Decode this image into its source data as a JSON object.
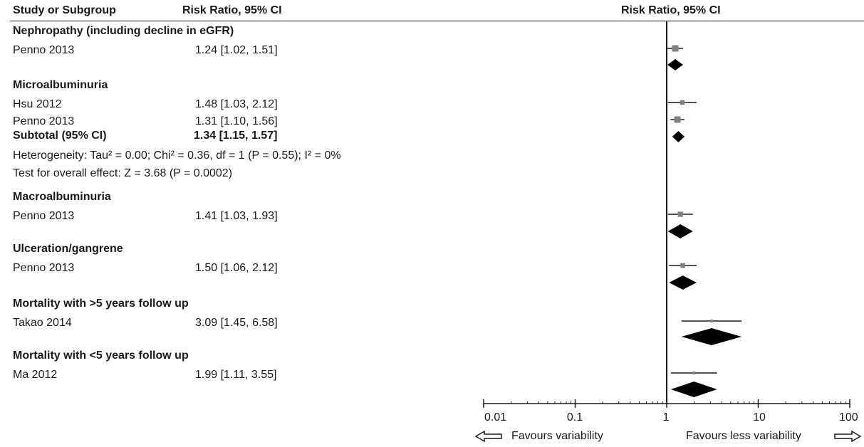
{
  "header": {
    "col_study": "Study or Subgroup",
    "col_rr": "Risk Ratio, 95% CI",
    "col_plot": "Risk Ratio, 95% CI"
  },
  "rows": [
    {
      "kind": "group",
      "label": "Nephropathy (including decline in eGFR)"
    },
    {
      "kind": "study",
      "label": "Penno 2013",
      "ci_text": "1.24 [1.02, 1.51]"
    },
    {
      "kind": "group",
      "label": "Microalbuminuria"
    },
    {
      "kind": "study",
      "label": "Hsu 2012",
      "ci_text": "1.48 [1.03, 2.12]"
    },
    {
      "kind": "study",
      "label": "Penno 2013",
      "ci_text": "1.31 [1.10, 1.56]"
    },
    {
      "kind": "subtotal",
      "label": "Subtotal (95% CI)",
      "ci_text": "1.34 [1.15, 1.57]"
    },
    {
      "kind": "note",
      "label": "Heterogeneity: Tau² = 0.00; Chi² = 0.36, df = 1 (P = 0.55); I² = 0%"
    },
    {
      "kind": "note",
      "label": "Test for overall effect: Z = 3.68 (P = 0.0002)"
    },
    {
      "kind": "group",
      "label": "Macroalbuminuria"
    },
    {
      "kind": "study",
      "label": "Penno 2013",
      "ci_text": "1.41 [1.03, 1.93]"
    },
    {
      "kind": "group",
      "label": "Ulceration/gangrene"
    },
    {
      "kind": "study",
      "label": "Penno 2013",
      "ci_text": "1.50 [1.06, 2.12]"
    },
    {
      "kind": "group",
      "label": "Mortality with >5 years follow up"
    },
    {
      "kind": "study",
      "label": "Takao 2014",
      "ci_text": "3.09 [1.45, 6.58]"
    },
    {
      "kind": "group",
      "label": "Mortality with <5 years follow up"
    },
    {
      "kind": "study",
      "label": "Ma 2012",
      "ci_text": "1.99 [1.11, 3.55]"
    }
  ],
  "axis": {
    "tick_labels": [
      "0.01",
      "0.1",
      "1",
      "10",
      "100"
    ],
    "favours_left": "Favours variability",
    "favours_right": "Favours less variability"
  },
  "chart_data": {
    "type": "forest",
    "scale": "log",
    "xlim": [
      0.01,
      100
    ],
    "ticks": [
      0.01,
      0.1,
      1,
      10,
      100
    ],
    "reference_line": 1,
    "studies": [
      {
        "name": "Penno 2013",
        "subgroup": "Nephropathy (including decline in eGFR)",
        "rr": 1.24,
        "lo": 1.02,
        "hi": 1.51
      },
      {
        "name": "Hsu 2012",
        "subgroup": "Microalbuminuria",
        "rr": 1.48,
        "lo": 1.03,
        "hi": 2.12
      },
      {
        "name": "Penno 2013",
        "subgroup": "Microalbuminuria",
        "rr": 1.31,
        "lo": 1.1,
        "hi": 1.56
      },
      {
        "name": "Penno 2013",
        "subgroup": "Macroalbuminuria",
        "rr": 1.41,
        "lo": 1.03,
        "hi": 1.93
      },
      {
        "name": "Penno 2013",
        "subgroup": "Ulceration/gangrene",
        "rr": 1.5,
        "lo": 1.06,
        "hi": 2.12
      },
      {
        "name": "Takao 2014",
        "subgroup": "Mortality with >5 years follow up",
        "rr": 3.09,
        "lo": 1.45,
        "hi": 6.58
      },
      {
        "name": "Ma 2012",
        "subgroup": "Mortality with <5 years follow up",
        "rr": 1.99,
        "lo": 1.11,
        "hi": 3.55
      }
    ],
    "summaries": [
      {
        "subgroup": "Nephropathy (including decline in eGFR)",
        "rr": 1.24,
        "lo": 1.02,
        "hi": 1.51
      },
      {
        "subgroup": "Microalbuminuria",
        "rr": 1.34,
        "lo": 1.15,
        "hi": 1.57
      },
      {
        "subgroup": "Macroalbuminuria",
        "rr": 1.41,
        "lo": 1.03,
        "hi": 1.93
      },
      {
        "subgroup": "Ulceration/gangrene",
        "rr": 1.5,
        "lo": 1.06,
        "hi": 2.12
      },
      {
        "subgroup": "Mortality with >5 years follow up",
        "rr": 3.09,
        "lo": 1.45,
        "hi": 6.58
      },
      {
        "subgroup": "Mortality with <5 years follow up",
        "rr": 1.99,
        "lo": 1.11,
        "hi": 3.55
      }
    ],
    "colors": {
      "square": "#808080",
      "diamond": "#000000",
      "line": "#1a1a1a"
    }
  }
}
